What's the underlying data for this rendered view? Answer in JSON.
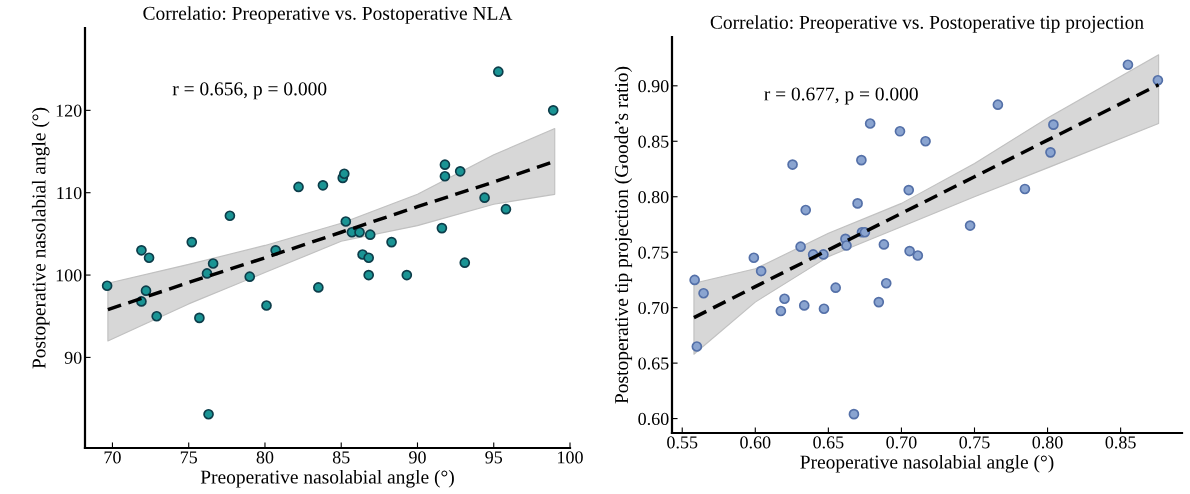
{
  "chart_data": [
    {
      "type": "scatter",
      "title": "Correlatio: Preoperative vs. Postoperative NLA",
      "xlabel": "Preoperative nasolabial angle (°)",
      "ylabel": "Postoperative nasolabial angle (°)",
      "annotations": [
        "r = 0.656, p = 0.000"
      ],
      "xlim": [
        68.2,
        100
      ],
      "xticks": [
        70,
        75,
        80,
        85,
        90,
        95,
        100
      ],
      "ylim": [
        79,
        130
      ],
      "yticks": [
        90,
        100,
        110,
        120
      ],
      "grid": false,
      "marker": "circle",
      "series": [
        {
          "color": "#1a9494",
          "x": [
            69.65,
            71.9,
            72.4,
            72.2,
            71.9,
            72.9,
            75.2,
            75.7,
            76.2,
            76.6,
            76.3,
            77.7,
            79.0,
            80.1,
            80.7,
            82.2,
            83.5,
            83.8,
            85.1,
            85.2,
            85.3,
            85.7,
            86.2,
            86.9,
            86.4,
            86.8,
            86.8,
            88.3,
            89.3,
            91.6,
            91.8,
            91.8,
            92.8,
            93.1,
            94.4,
            95.3,
            95.8,
            98.9
          ],
          "values": [
            98.7,
            103.0,
            102.1,
            98.1,
            96.8,
            95.0,
            104.0,
            94.8,
            100.2,
            101.4,
            83.1,
            107.2,
            99.8,
            96.3,
            103.0,
            110.7,
            98.5,
            110.9,
            111.8,
            112.3,
            106.5,
            105.2,
            105.2,
            104.9,
            102.5,
            102.1,
            100.0,
            104.0,
            100.0,
            105.7,
            113.4,
            112.0,
            112.6,
            101.5,
            109.4,
            124.7,
            108.0,
            120.0
          ]
        },
        {
          "type": "line",
          "color": "#000000",
          "line_style": "dashed",
          "marker": "none",
          "x": [
            69.7,
            75,
            80,
            85,
            90,
            95,
            99
          ],
          "values": [
            95.8,
            99.1,
            102.1,
            105.2,
            108.3,
            111.3,
            113.8
          ],
          "lower": [
            92.0,
            96.5,
            100.3,
            104.1,
            106.0,
            108.6,
            109.8
          ],
          "upper": [
            99.0,
            101.3,
            103.6,
            106.3,
            109.8,
            114.6,
            117.8
          ]
        }
      ]
    },
    {
      "type": "scatter",
      "title": "Correlatio: Preoperative vs. Postoperative tip projection",
      "xlabel": "Preoperative nasolabial angle (°)",
      "ylabel": "Postoperative tip projection (Goode’s ratio)",
      "annotations": [
        "r = 0.677, p = 0.000"
      ],
      "xlim": [
        0.543,
        0.892
      ],
      "xticks": [
        {
          "value": 0.55,
          "label": "0.55"
        },
        {
          "value": 0.6,
          "label": "0.60"
        },
        {
          "value": 0.65,
          "label": "0.65"
        },
        {
          "value": 0.7,
          "label": "0.70"
        },
        {
          "value": 0.75,
          "label": "0.75"
        },
        {
          "value": 0.8,
          "label": "0.80"
        },
        {
          "value": 0.85,
          "label": "0.85"
        }
      ],
      "ylim": [
        0.587,
        0.944
      ],
      "yticks": [
        {
          "value": 0.6,
          "label": "0.60"
        },
        {
          "value": 0.65,
          "label": "0.65"
        },
        {
          "value": 0.7,
          "label": "0.70"
        },
        {
          "value": 0.75,
          "label": "0.75"
        },
        {
          "value": 0.8,
          "label": "0.80"
        },
        {
          "value": 0.85,
          "label": "0.85"
        },
        {
          "value": 0.9,
          "label": "0.90"
        }
      ],
      "grid": false,
      "marker": "circle",
      "series": [
        {
          "color": "#8aa4d0",
          "x": [
            0.5585,
            0.56,
            0.5646,
            0.599,
            0.604,
            0.6175,
            0.62,
            0.6255,
            0.631,
            0.6335,
            0.6345,
            0.6396,
            0.6466,
            0.647,
            0.655,
            0.6617,
            0.6624,
            0.6675,
            0.67,
            0.6726,
            0.673,
            0.675,
            0.6786,
            0.6845,
            0.688,
            0.6896,
            0.699,
            0.705,
            0.7056,
            0.7112,
            0.7165,
            0.747,
            0.766,
            0.7845,
            0.802,
            0.804,
            0.855,
            0.8755
          ],
          "values": [
            0.725,
            0.665,
            0.713,
            0.745,
            0.733,
            0.697,
            0.708,
            0.829,
            0.755,
            0.702,
            0.788,
            0.748,
            0.748,
            0.699,
            0.718,
            0.762,
            0.756,
            0.604,
            0.794,
            0.833,
            0.768,
            0.768,
            0.866,
            0.705,
            0.757,
            0.722,
            0.859,
            0.806,
            0.751,
            0.747,
            0.85,
            0.774,
            0.883,
            0.807,
            0.84,
            0.865,
            0.919,
            0.905
          ]
        },
        {
          "type": "line",
          "color": "#000000",
          "line_style": "dashed",
          "marker": "none",
          "x": [
            0.558,
            0.6,
            0.65,
            0.7,
            0.75,
            0.8,
            0.876
          ],
          "values": [
            0.691,
            0.719,
            0.752,
            0.785,
            0.818,
            0.851,
            0.901
          ],
          "lower": [
            0.658,
            0.705,
            0.746,
            0.773,
            0.8,
            0.826,
            0.866
          ],
          "upper": [
            0.722,
            0.735,
            0.767,
            0.794,
            0.83,
            0.871,
            0.928
          ]
        }
      ]
    }
  ]
}
